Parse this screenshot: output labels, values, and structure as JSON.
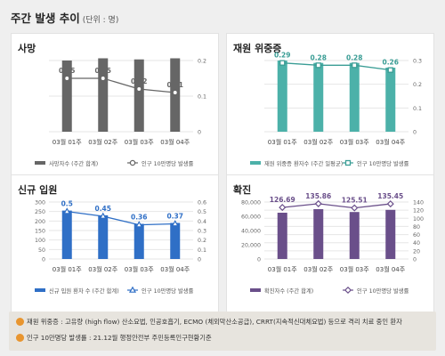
{
  "header": {
    "title": "주간 발생 추이",
    "unit": "(단위 : 명)"
  },
  "chart_data": [
    {
      "type": "bar",
      "title": "사망",
      "categories": [
        "03월 01주",
        "03월 02주",
        "03월 03주",
        "03월 04주"
      ],
      "bars": {
        "name": "사망자수 (주간 합계)",
        "values": [
          320,
          330,
          325,
          330
        ],
        "color": "#666666",
        "ylim": [
          0,
          320
        ],
        "ticks": []
      },
      "line": {
        "name": "인구 10만명당 발생률",
        "values": [
          0.15,
          0.15,
          0.12,
          0.11
        ],
        "labels": [
          "0.15",
          "0.15",
          "0.12",
          "0.11"
        ],
        "color": "#666666",
        "marker": "circle",
        "ylim": [
          0,
          0.2
        ],
        "ticks": [
          "0",
          "0.1",
          "0.2"
        ]
      },
      "grid": true,
      "legend": "bottom"
    },
    {
      "type": "bar",
      "title": "재원 위중증",
      "categories": [
        "03월 01주",
        "03월 02주",
        "03월 03주",
        "03월 04주"
      ],
      "bars": {
        "name": "재원 위중증 환자수 (주간 일평균)",
        "values": [
          150,
          145,
          145,
          135
        ],
        "color": "#4cb1a9",
        "ylim": [
          0,
          150
        ],
        "ticks": []
      },
      "line": {
        "name": "인구 10만명당 발생률",
        "values": [
          0.29,
          0.28,
          0.28,
          0.26
        ],
        "labels": [
          "0.29",
          "0.28",
          "0.28",
          "0.26"
        ],
        "color": "#3a9d95",
        "marker": "square",
        "ylim": [
          0,
          0.3
        ],
        "ticks": [
          "0",
          "0.1",
          "0.2",
          "0.3"
        ]
      },
      "grid": true,
      "legend": "bottom"
    },
    {
      "type": "bar",
      "title": "신규 입원",
      "categories": [
        "03월 01주",
        "03월 02주",
        "03월 03주",
        "03월 04주"
      ],
      "bars": {
        "name": "신규 입원 환자 수 (주간 합계)",
        "values": [
          255,
          230,
          185,
          190
        ],
        "color": "#2f6fc6",
        "ylim": [
          0,
          300
        ],
        "ticks": [
          "0",
          "50",
          "100",
          "150",
          "200",
          "250",
          "300"
        ]
      },
      "line": {
        "name": "인구 10만명당 발생률",
        "values": [
          0.5,
          0.45,
          0.36,
          0.37
        ],
        "labels": [
          "0.5",
          "0.45",
          "0.36",
          "0.37"
        ],
        "color": "#2f6fc6",
        "marker": "triangle",
        "ylim": [
          0,
          0.6
        ],
        "ticks": [
          "0",
          "0.1",
          "0.2",
          "0.3",
          "0.4",
          "0.5",
          "0.6"
        ]
      },
      "grid": true,
      "legend": "bottom"
    },
    {
      "type": "bar",
      "title": "확진",
      "categories": [
        "03월 01주",
        "03월 02주",
        "03월 03주",
        "03월 04주"
      ],
      "bars": {
        "name": "확진자수 (주간 합계)",
        "values": [
          65000,
          70000,
          66000,
          69000
        ],
        "color": "#6a4f8a",
        "ylim": [
          0,
          80000
        ],
        "ticks": [
          "0",
          "20,000",
          "40,000",
          "60,000",
          "80,000"
        ]
      },
      "line": {
        "name": "인구 10만명당 발생률",
        "values": [
          126.69,
          135.86,
          125.51,
          135.45
        ],
        "labels": [
          "126.69",
          "135.86",
          "125.51",
          "135.45"
        ],
        "color": "#6a4f8a",
        "marker": "diamond",
        "ylim": [
          0,
          140
        ],
        "ticks": [
          "0",
          "20",
          "40",
          "60",
          "80",
          "100",
          "120",
          "140"
        ]
      },
      "grid": true,
      "legend": "bottom"
    }
  ],
  "notes": [
    "재원 위중증 : 고유량 (high flow) 산소요법, 인공호흡기, ECMO (체외막산소공급), CRRT(지속적신대체요법) 등으로 격리 치료 중인 환자",
    "인구 10만명당 발생률 : 21.12월 행정안전부 주민등록인구현황기준"
  ],
  "colors": {
    "background": "#efefef",
    "footer": "#e7e4de",
    "note_icon": "#e8952f"
  }
}
